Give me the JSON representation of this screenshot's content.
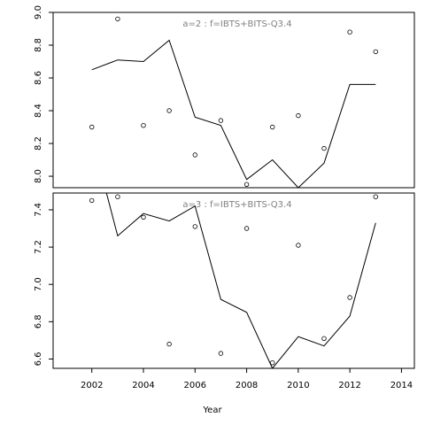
{
  "chart_data": {
    "type": "scatter",
    "xlabel": "Year",
    "xlim": [
      2000.5,
      2014.5
    ],
    "x_ticks": [
      2002,
      2004,
      2006,
      2008,
      2010,
      2012,
      2014
    ],
    "title_color": "#808080",
    "panels": [
      {
        "title": "a=2  :  f=IBTS+BITS-Q3.4",
        "ylim": [
          7.93,
          9.0
        ],
        "y_ticks": [
          8.0,
          8.2,
          8.4,
          8.6,
          8.8,
          9.0
        ],
        "points": {
          "x": [
            2002,
            2003,
            2004,
            2005,
            2006,
            2007,
            2008,
            2009,
            2010,
            2011,
            2012,
            2013
          ],
          "y": [
            8.3,
            8.96,
            8.31,
            8.4,
            8.13,
            8.34,
            7.95,
            8.3,
            8.37,
            8.17,
            8.88,
            8.76
          ]
        },
        "line": {
          "x": [
            2002,
            2003,
            2004,
            2005,
            2006,
            2007,
            2008,
            2009,
            2010,
            2011,
            2012,
            2013
          ],
          "y": [
            8.65,
            8.71,
            8.7,
            8.83,
            8.36,
            8.31,
            7.98,
            8.1,
            7.93,
            8.08,
            8.56,
            8.56
          ]
        }
      },
      {
        "title": "a=3  :  f=IBTS+BITS-Q3.4",
        "ylim": [
          6.55,
          7.49
        ],
        "y_ticks": [
          6.6,
          6.8,
          7.0,
          7.2,
          7.4
        ],
        "points": {
          "x": [
            2002,
            2003,
            2004,
            2005,
            2006,
            2007,
            2008,
            2009,
            2010,
            2011,
            2012,
            2013
          ],
          "y": [
            7.45,
            7.47,
            7.36,
            6.68,
            7.31,
            6.63,
            7.3,
            6.58,
            7.21,
            6.71,
            6.93,
            7.47
          ]
        },
        "line": {
          "x": [
            2002.55,
            2003,
            2004,
            2005,
            2006,
            2007,
            2008,
            2009,
            2010,
            2011,
            2012,
            2013
          ],
          "y": [
            7.5,
            7.26,
            7.38,
            7.34,
            7.42,
            6.92,
            6.85,
            6.55,
            6.72,
            6.67,
            6.83,
            7.33
          ]
        }
      }
    ]
  }
}
